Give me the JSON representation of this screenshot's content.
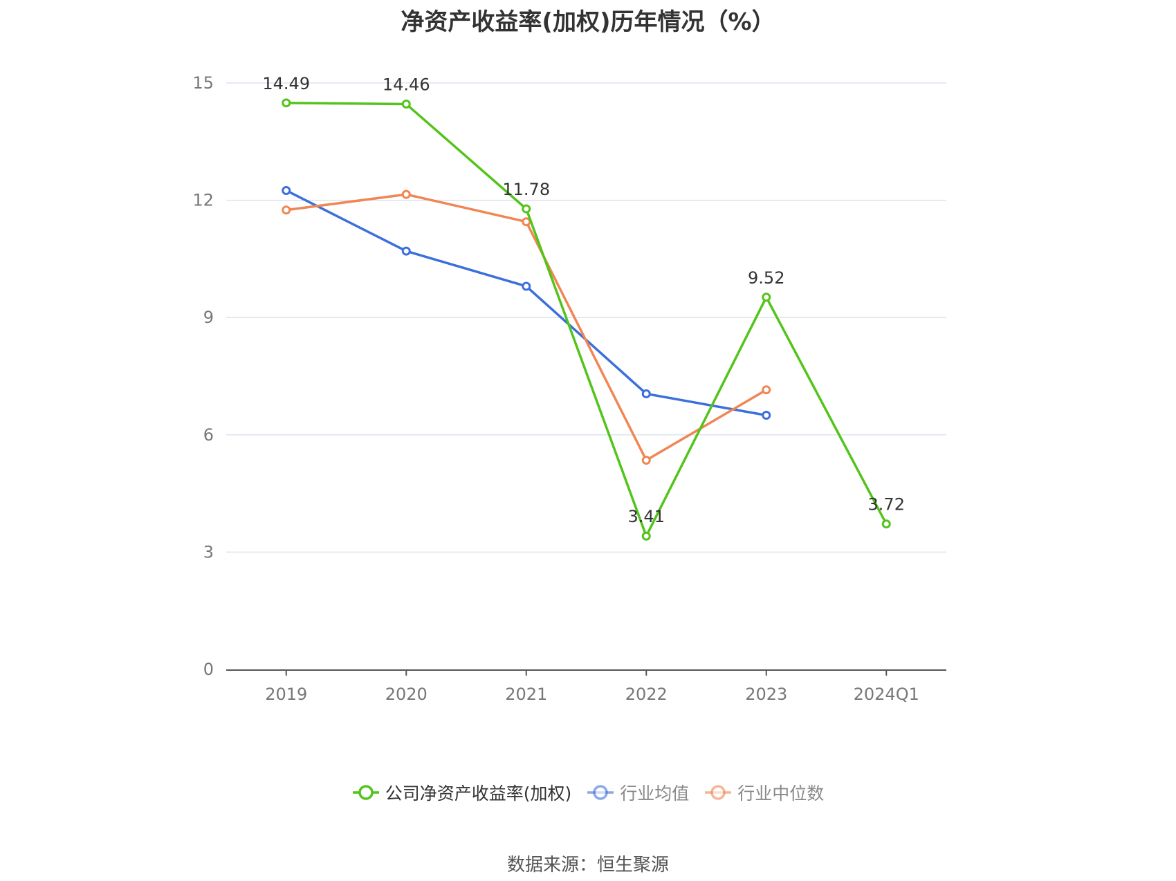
{
  "chart_data": {
    "type": "line",
    "title": "净资产收益率(加权)历年情况（%）",
    "categories": [
      "2019",
      "2020",
      "2021",
      "2022",
      "2023",
      "2024Q1"
    ],
    "ylim": [
      0,
      15
    ],
    "yticks": [
      "0",
      "3",
      "6",
      "9",
      "12",
      "15"
    ],
    "grid": true,
    "legend_position": "bottom",
    "series": [
      {
        "name": "公司净资产收益率(加权)",
        "color": "#52c41a",
        "values": [
          14.49,
          14.46,
          11.78,
          3.41,
          9.52,
          3.72
        ],
        "labels": [
          "14.49",
          "14.46",
          "11.78",
          "3.41",
          "9.52",
          "3.72"
        ]
      },
      {
        "name": "行业均值",
        "color": "#3b6fdc",
        "values": [
          12.25,
          10.7,
          9.8,
          7.05,
          6.5,
          null
        ]
      },
      {
        "name": "行业中位数",
        "color": "#f08653",
        "values": [
          11.75,
          12.15,
          11.45,
          5.35,
          7.15,
          null
        ]
      }
    ]
  },
  "source": "数据来源：恒生聚源"
}
